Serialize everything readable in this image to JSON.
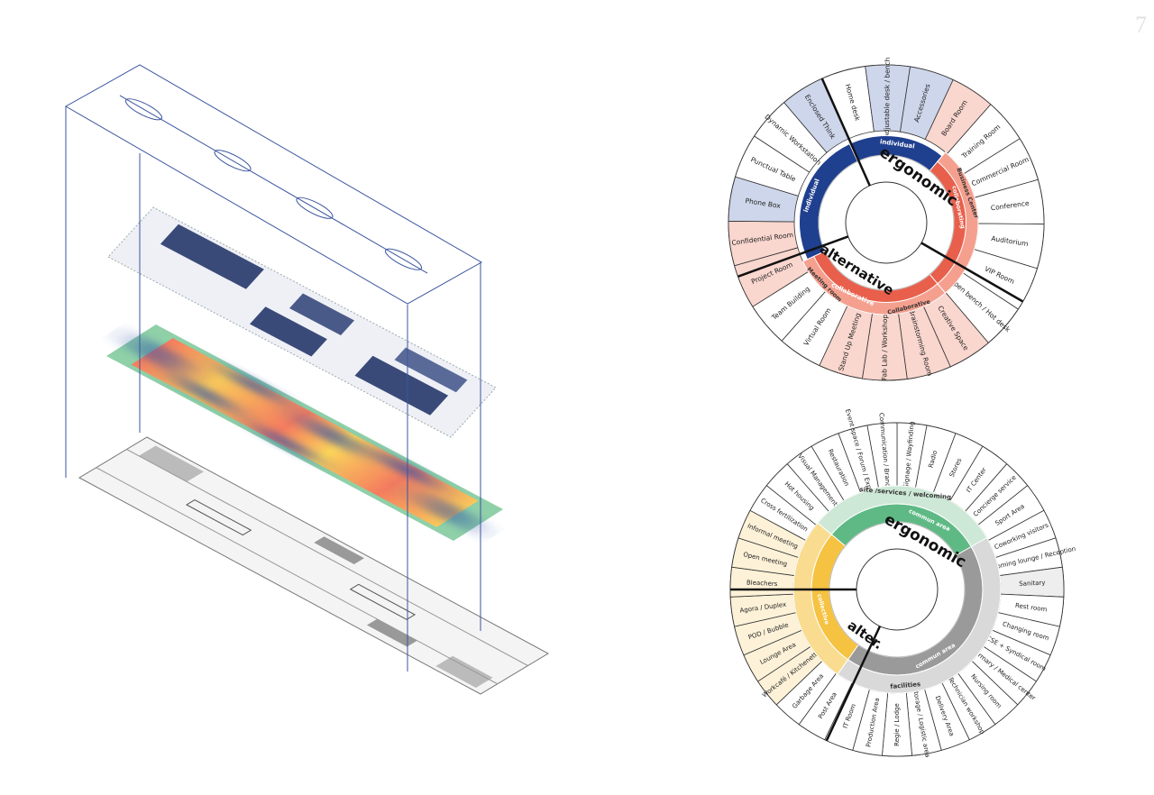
{
  "page_number": "7",
  "wheels": [
    {
      "center_top": "ergonomic",
      "center_bottom": "alternative",
      "ring": [
        {
          "label": "individual"
        },
        {
          "label": "individual"
        },
        {
          "label": "collaborating"
        },
        {
          "label": "collaborative"
        },
        {
          "label": "Business Center"
        },
        {
          "label": "Meeting room"
        },
        {
          "label": "Collaborative"
        }
      ],
      "segments": [
        {
          "label": "Home desk",
          "color": "#ffffff"
        },
        {
          "label": "Adjustable desk / bench",
          "color": "#cdd6ea"
        },
        {
          "label": "Accessories",
          "color": "#cdd6ea"
        },
        {
          "label": "Board Room",
          "color": "#f9d6ce"
        },
        {
          "label": "Training Room",
          "color": "#ffffff"
        },
        {
          "label": "Commercial Room",
          "color": "#ffffff"
        },
        {
          "label": "Conference",
          "color": "#ffffff"
        },
        {
          "label": "Auditorium",
          "color": "#ffffff"
        },
        {
          "label": "VIP Room",
          "color": "#ffffff"
        },
        {
          "label": "Open bench / Hot desk",
          "color": "#ffffff"
        },
        {
          "label": "Creative Space",
          "color": "#f9d6ce"
        },
        {
          "label": "Brainstorming Room",
          "color": "#f9d6ce"
        },
        {
          "label": "Fab Lab / Workshop",
          "color": "#f9d6ce"
        },
        {
          "label": "Stand Up Meeting",
          "color": "#f9d6ce"
        },
        {
          "label": "Virtual Room",
          "color": "#ffffff"
        },
        {
          "label": "Team Building",
          "color": "#ffffff"
        },
        {
          "label": "Project Room",
          "color": "#f9d6ce"
        },
        {
          "label": "Confidential Room",
          "color": "#f9d6ce"
        },
        {
          "label": "Phone Box",
          "color": "#cdd6ea"
        },
        {
          "label": "Punctual Table",
          "color": "#ffffff"
        },
        {
          "label": "Dynamic Workstation",
          "color": "#ffffff"
        },
        {
          "label": "Enclosed Think",
          "color": "#cdd6ea"
        }
      ]
    },
    {
      "center_top": "ergonomic",
      "center_bottom": "alter.",
      "ring": [
        {
          "label": "site /services / welcoming"
        },
        {
          "label": "commun area"
        },
        {
          "label": "facilities"
        },
        {
          "label": "commun area"
        },
        {
          "label": "collective"
        }
      ],
      "segments": [
        {
          "label": "Signage / Wayfinding",
          "color": "#ffffff"
        },
        {
          "label": "Radio",
          "color": "#ffffff"
        },
        {
          "label": "Stores",
          "color": "#ffffff"
        },
        {
          "label": "IT Center",
          "color": "#ffffff"
        },
        {
          "label": "Concierge service",
          "color": "#ffffff"
        },
        {
          "label": "Sport Area",
          "color": "#ffffff"
        },
        {
          "label": "Coworking visitors",
          "color": "#ffffff"
        },
        {
          "label": "Welcoming lounge / Reception",
          "color": "#ffffff"
        },
        {
          "label": "Sanitary",
          "color": "#eeeeee"
        },
        {
          "label": "Rest room",
          "color": "#ffffff"
        },
        {
          "label": "Changing room",
          "color": "#ffffff"
        },
        {
          "label": "CSE + Syndical room",
          "color": "#ffffff"
        },
        {
          "label": "Infirmary / Medical center",
          "color": "#ffffff"
        },
        {
          "label": "Nursing room",
          "color": "#ffffff"
        },
        {
          "label": "Technician workshop",
          "color": "#ffffff"
        },
        {
          "label": "Delivery Area",
          "color": "#ffffff"
        },
        {
          "label": "Storage / Logistic area",
          "color": "#ffffff"
        },
        {
          "label": "Regie / Lodge",
          "color": "#ffffff"
        },
        {
          "label": "Production Area",
          "color": "#ffffff"
        },
        {
          "label": "IT Room",
          "color": "#ffffff"
        },
        {
          "label": "Post Area",
          "color": "#ffffff"
        },
        {
          "label": "Garbage Area",
          "color": "#ffffff"
        },
        {
          "label": "Workcafé / Kitchenette",
          "color": "#fdf2d8"
        },
        {
          "label": "Lounge Area",
          "color": "#fdf2d8"
        },
        {
          "label": "POD / Bubble",
          "color": "#fdf2d8"
        },
        {
          "label": "Agora / Duplex",
          "color": "#fdf2d8"
        },
        {
          "label": "Bleachers",
          "color": "#fdf2d8"
        },
        {
          "label": "Open meeting",
          "color": "#fdf2d8"
        },
        {
          "label": "Informal meeting",
          "color": "#fdf2d8"
        },
        {
          "label": "Cross fertilization",
          "color": "#ffffff"
        },
        {
          "label": "Hot housing",
          "color": "#ffffff"
        },
        {
          "label": "Visual Management",
          "color": "#ffffff"
        },
        {
          "label": "Restauration",
          "color": "#ffffff"
        },
        {
          "label": "Event space / Forum / Exposition",
          "color": "#ffffff"
        },
        {
          "label": "Communication / Branding",
          "color": "#ffffff"
        }
      ]
    }
  ]
}
